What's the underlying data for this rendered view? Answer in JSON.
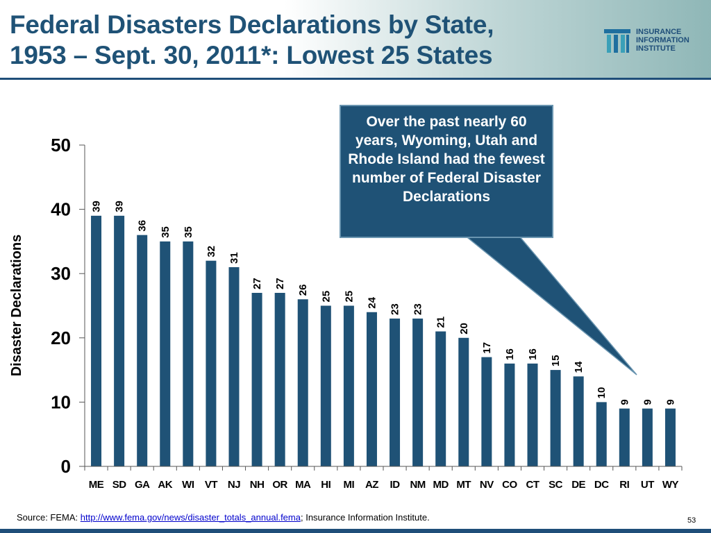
{
  "slide": {
    "title_line1": "Federal Disasters Declarations by State,",
    "title_line2": "1953 – Sept. 30, 2011*: Lowest 25 States",
    "logo_lines": [
      "INSURANCE",
      "INFORMATION",
      "INSTITUTE"
    ],
    "callout": "Over the past nearly 60 years, Wyoming, Utah and Rhode Island had the fewest number of Federal Disaster Declarations",
    "source_prefix": "Source:  FEMA: ",
    "source_link": "http://www.fema.gov/news/disaster_totals_annual.fema",
    "source_suffix": "; Insurance Information Institute.",
    "page_number": "53",
    "colors": {
      "bar": "#1f5276",
      "title": "#1f5276",
      "callout_bg": "#1f5276"
    }
  },
  "chart_data": {
    "type": "bar",
    "categories": [
      "ME",
      "SD",
      "GA",
      "AK",
      "WI",
      "VT",
      "NJ",
      "NH",
      "OR",
      "MA",
      "HI",
      "MI",
      "AZ",
      "ID",
      "NM",
      "MD",
      "MT",
      "NV",
      "CO",
      "CT",
      "SC",
      "DE",
      "DC",
      "RI",
      "UT",
      "WY"
    ],
    "values": [
      39,
      39,
      36,
      35,
      35,
      32,
      31,
      27,
      27,
      26,
      25,
      25,
      24,
      23,
      23,
      21,
      20,
      17,
      16,
      16,
      15,
      14,
      10,
      9,
      9,
      9
    ],
    "ylabel": "Disaster Declarations",
    "xlabel": "",
    "ylim": [
      0,
      50
    ],
    "yticks": [
      0,
      10,
      20,
      30,
      40,
      50
    ],
    "grid": false
  }
}
